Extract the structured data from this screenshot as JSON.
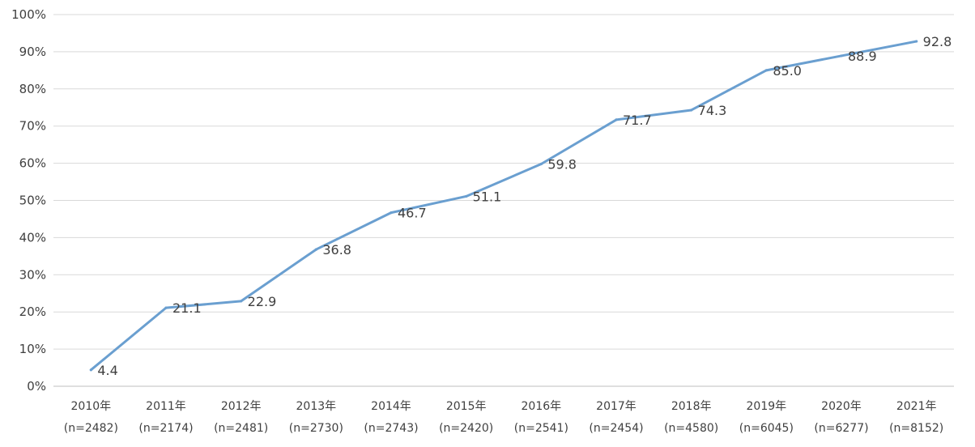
{
  "chart_data": {
    "type": "line",
    "title": "",
    "xlabel": "",
    "ylabel": "",
    "ylim": [
      0,
      100
    ],
    "y_ticks": [
      "0%",
      "10%",
      "20%",
      "30%",
      "40%",
      "50%",
      "60%",
      "70%",
      "80%",
      "90%",
      "100%"
    ],
    "grid": "horizontal",
    "legend": "none",
    "categories": [
      "2010年",
      "2011年",
      "2012年",
      "2013年",
      "2014年",
      "2015年",
      "2016年",
      "2017年",
      "2018年",
      "2019年",
      "2020年",
      "2021年"
    ],
    "category_sublabels": [
      "(n=2482)",
      "(n=2174)",
      "(n=2481)",
      "(n=2730)",
      "(n=2743)",
      "(n=2420)",
      "(n=2541)",
      "(n=2454)",
      "(n=4580)",
      "(n=6045)",
      "(n=6277)",
      "(n=8152)"
    ],
    "series": [
      {
        "values": [
          4.4,
          21.1,
          22.9,
          36.8,
          46.7,
          51.1,
          59.8,
          71.7,
          74.3,
          85.0,
          88.9,
          92.8
        ],
        "labels": [
          "4.4",
          "21.1",
          "22.9",
          "36.8",
          "46.7",
          "51.1",
          "59.8",
          "71.7",
          "74.3",
          "85.0",
          "88.9",
          "92.8"
        ],
        "color": "#6a9fd0"
      }
    ]
  }
}
